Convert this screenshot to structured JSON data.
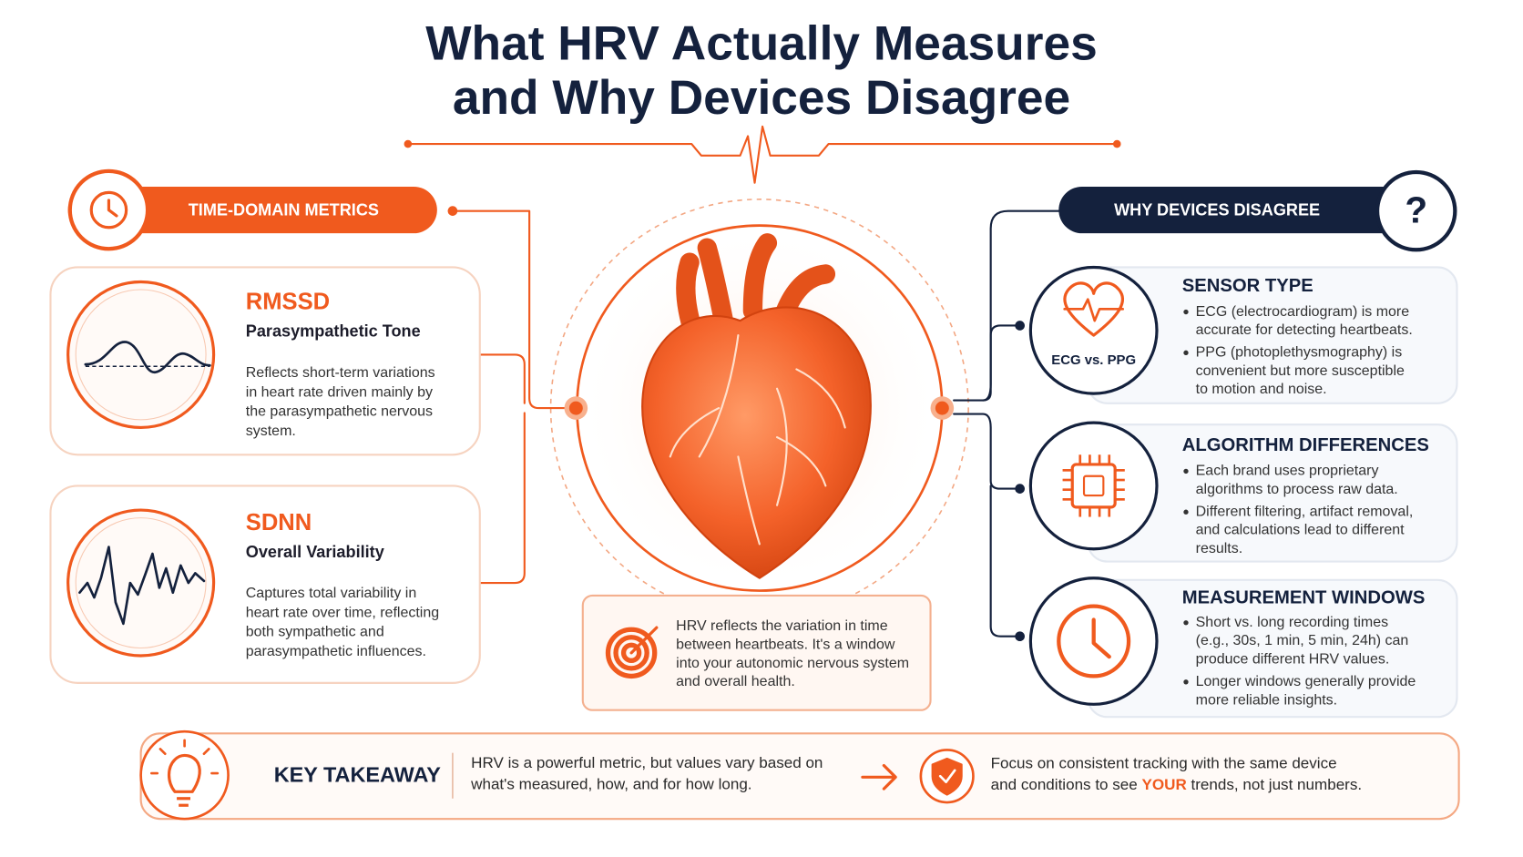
{
  "title": {
    "line1": "What HRV Actually Measures",
    "line2": "and Why Devices Disagree"
  },
  "left": {
    "header": "TIME-DOMAIN METRICS",
    "cards": [
      {
        "title": "RMSSD",
        "subtitle": "Parasympathetic Tone",
        "lines": [
          "Reflects short-term variations",
          "in heart rate driven mainly by",
          "the parasympathetic nervous",
          "system."
        ]
      },
      {
        "title": "SDNN",
        "subtitle": "Overall Variability",
        "lines": [
          "Captures total variability in",
          "heart rate over time, reflecting",
          "both sympathetic and",
          "parasympathetic influences."
        ]
      }
    ]
  },
  "center": {
    "note": [
      "HRV reflects the variation in time",
      "between heartbeats. It's a window",
      "into your autonomic nervous system",
      "and overall health."
    ]
  },
  "right": {
    "header": "WHY DEVICES DISAGREE",
    "header_icon": "?",
    "cards": [
      {
        "title": "SENSOR TYPE",
        "icon_label": "ECG vs. PPG",
        "bullets": [
          [
            "ECG (electrocardiogram) is more",
            "accurate for detecting heartbeats."
          ],
          [
            "PPG (photoplethysmography) is",
            "convenient but more susceptible",
            "to motion and noise."
          ]
        ]
      },
      {
        "title": "ALGORITHM DIFFERENCES",
        "bullets": [
          [
            "Each brand uses proprietary",
            "algorithms to process raw data."
          ],
          [
            "Different filtering, artifact removal,",
            "and calculations lead to different",
            "results."
          ]
        ]
      },
      {
        "title": "MEASUREMENT WINDOWS",
        "bullets": [
          [
            "Short vs. long recording times",
            "(e.g., 30s, 1 min, 5 min, 24h) can",
            "produce different HRV values."
          ],
          [
            "Longer windows generally provide",
            "more reliable insights."
          ]
        ]
      }
    ]
  },
  "takeaway": {
    "label": "KEY TAKEAWAY",
    "text": [
      "HRV is a powerful metric, but values vary based on",
      "what's measured, how, and for how long."
    ],
    "action": [
      [
        "Focus on consistent tracking with the same device"
      ],
      [
        "and conditions to see ",
        "YOUR",
        " trends, not just numbers."
      ]
    ]
  }
}
